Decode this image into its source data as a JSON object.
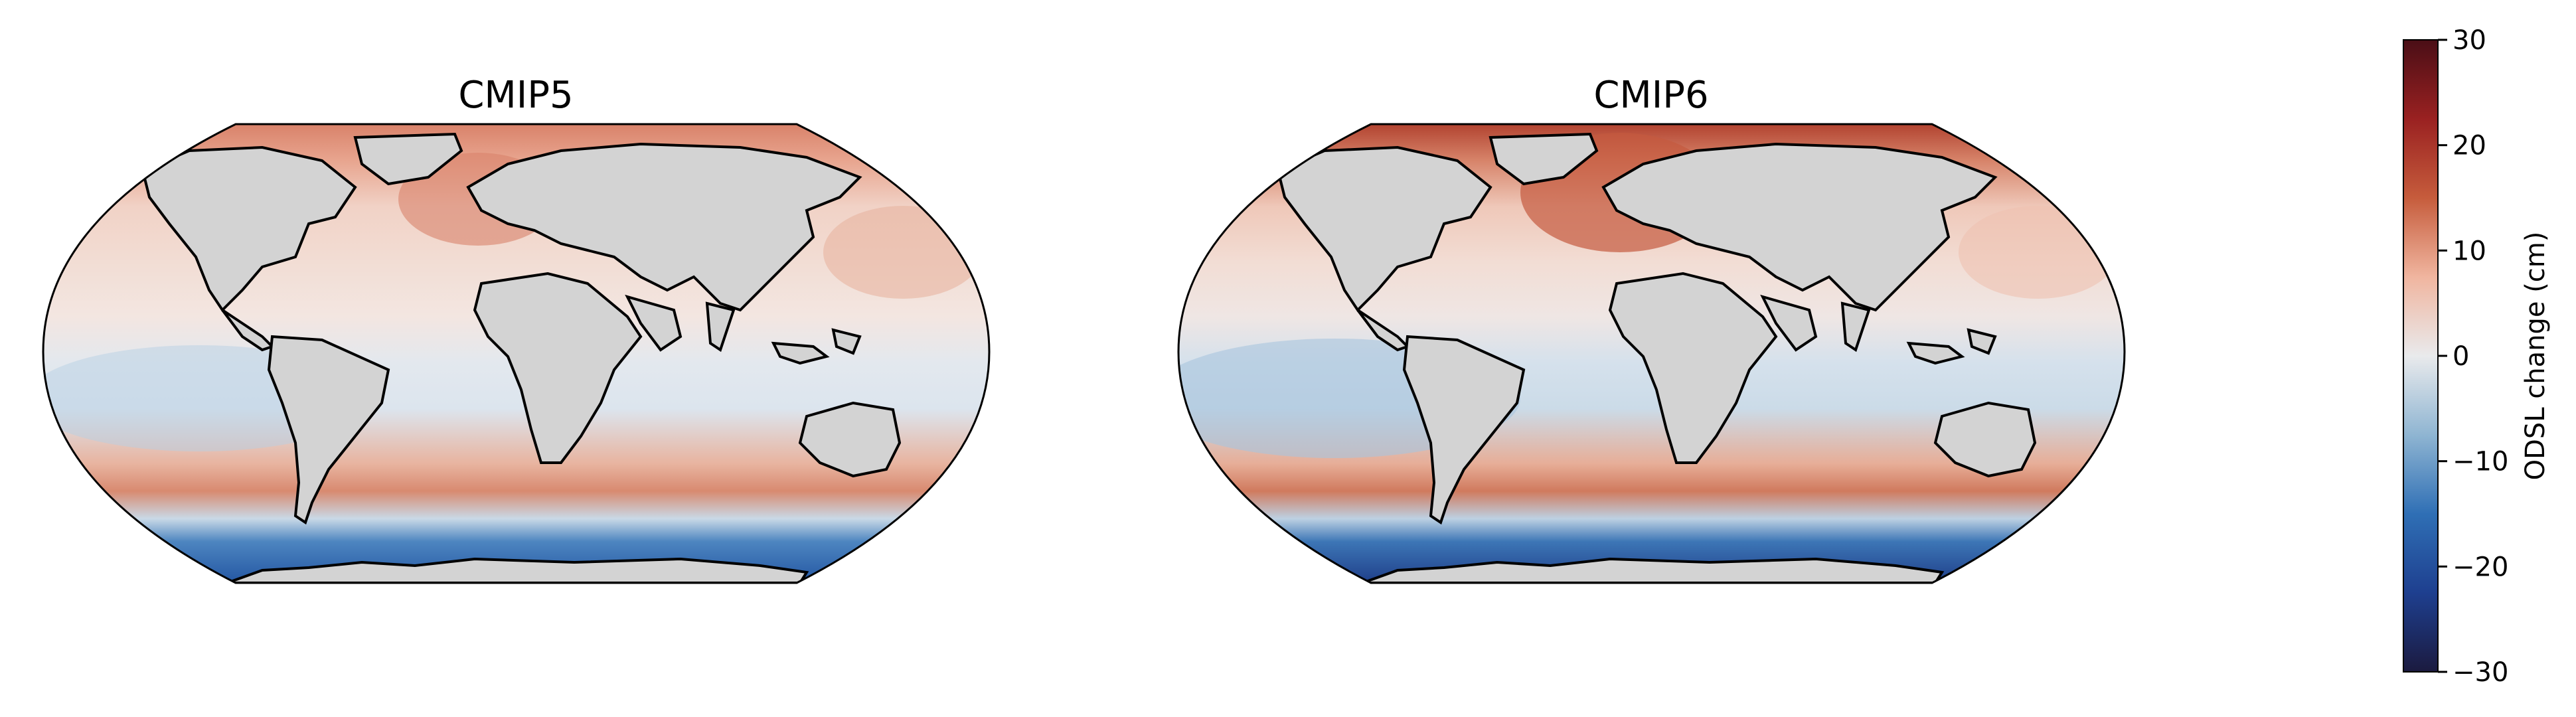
{
  "chart_data": {
    "type": "heatmap",
    "projection": "robinson-like global map",
    "variable_label": "ODSL change (cm)",
    "vmin": -30,
    "vmax": 30,
    "colormap": [
      "#1b1a3f",
      "#1e3f8f",
      "#2f6fb5",
      "#8fb5d2",
      "#e9eaec",
      "#f0b59f",
      "#c65c3c",
      "#9a2121",
      "#4a0e16"
    ],
    "land_color": "#d3d3d3",
    "colorbar": {
      "ticks": [
        30,
        20,
        10,
        0,
        -10,
        -20,
        -30
      ],
      "tick_labels": [
        "30",
        "20",
        "10",
        "0",
        "−10",
        "−20",
        "−30"
      ],
      "label": "ODSL change (cm)"
    },
    "panels": [
      {
        "title": "CMIP5",
        "regional_pattern_cm": {
          "arctic_north_atlantic": 12,
          "subpolar_north_atlantic": 8,
          "north_pacific": 6,
          "tropics": 2,
          "equatorial_pacific": -3,
          "south_pacific_subtropics": -5,
          "antarctic_circumpolar_band": 15,
          "southern_ocean_coast": -22
        }
      },
      {
        "title": "CMIP6",
        "regional_pattern_cm": {
          "arctic_north_atlantic": 18,
          "subpolar_north_atlantic": 14,
          "north_pacific": 4,
          "tropics": 2,
          "equatorial_pacific": -5,
          "south_pacific_subtropics": -8,
          "antarctic_circumpolar_band": 16,
          "southern_ocean_coast": -26
        }
      }
    ]
  }
}
